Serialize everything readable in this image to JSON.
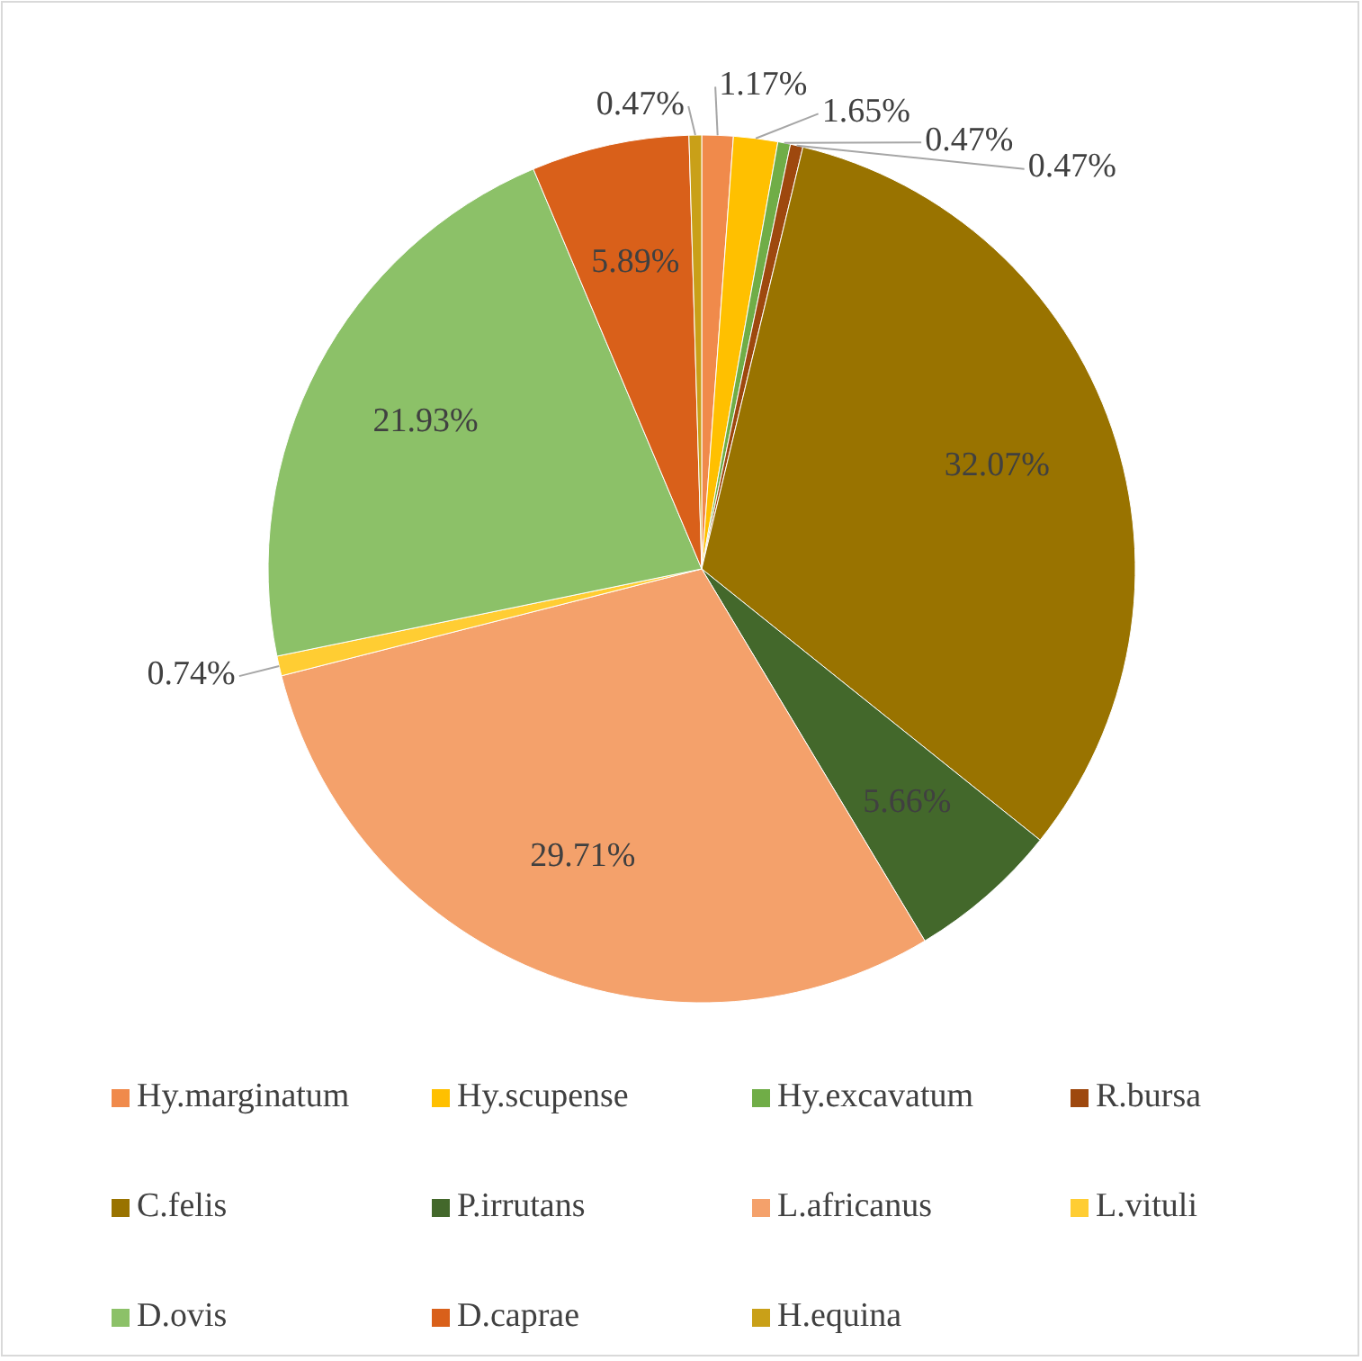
{
  "chart_data": {
    "type": "pie",
    "categories": [
      "Hy.marginatum",
      "Hy.scupense",
      "Hy.excavatum",
      "R.bursa",
      "C.felis",
      "P.irrutans",
      "L.africanus",
      "L.vituli",
      "D.ovis",
      "D.caprae",
      "H.equina"
    ],
    "values": [
      1.17,
      1.65,
      0.47,
      0.47,
      32.07,
      5.66,
      29.71,
      0.74,
      21.93,
      5.89,
      0.47
    ],
    "colors": [
      "#f08a4b",
      "#ffc000",
      "#70ad47",
      "#9e480e",
      "#997300",
      "#43682b",
      "#f4a16b",
      "#ffcd33",
      "#8cc168",
      "#d9601a",
      "#c9a018"
    ],
    "value_labels": [
      "1.17%",
      "1.65%",
      "0.47%",
      "0.47%",
      "32.07%",
      "5.66%",
      "29.71%",
      "0.74%",
      "21.93%",
      "5.89%",
      "0.47%"
    ],
    "legend": "bottom"
  }
}
